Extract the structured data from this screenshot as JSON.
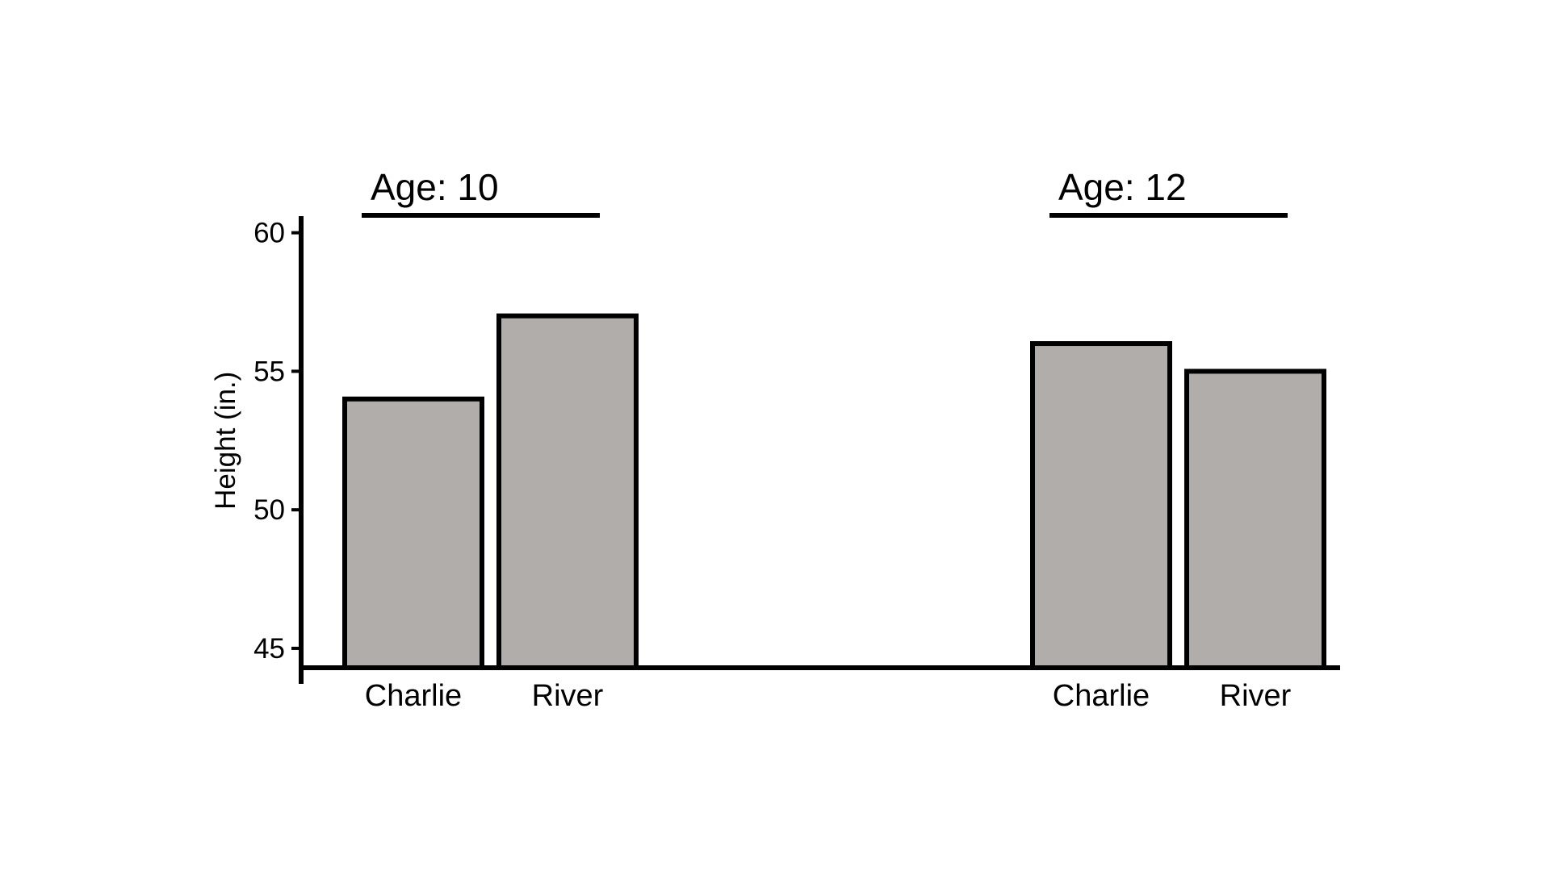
{
  "chart_data": {
    "type": "bar",
    "title": "",
    "xlabel": "",
    "ylabel": "Height (in.)",
    "ylim": [
      44.3,
      60.6
    ],
    "yticks": [
      45,
      50,
      55,
      60
    ],
    "groups": [
      {
        "label": "Age: 10",
        "bars": [
          {
            "category": "Charlie",
            "value": 54
          },
          {
            "category": "River",
            "value": 57
          }
        ]
      },
      {
        "label": "Age: 12",
        "bars": [
          {
            "category": "Charlie",
            "value": 56
          },
          {
            "category": "River",
            "value": 55
          }
        ]
      }
    ],
    "grid": false,
    "legend": "none",
    "colors": {
      "bar_fill": "#b0adab",
      "bar_stroke": "#000000",
      "axis": "#000000",
      "background": "#ffffff"
    }
  }
}
